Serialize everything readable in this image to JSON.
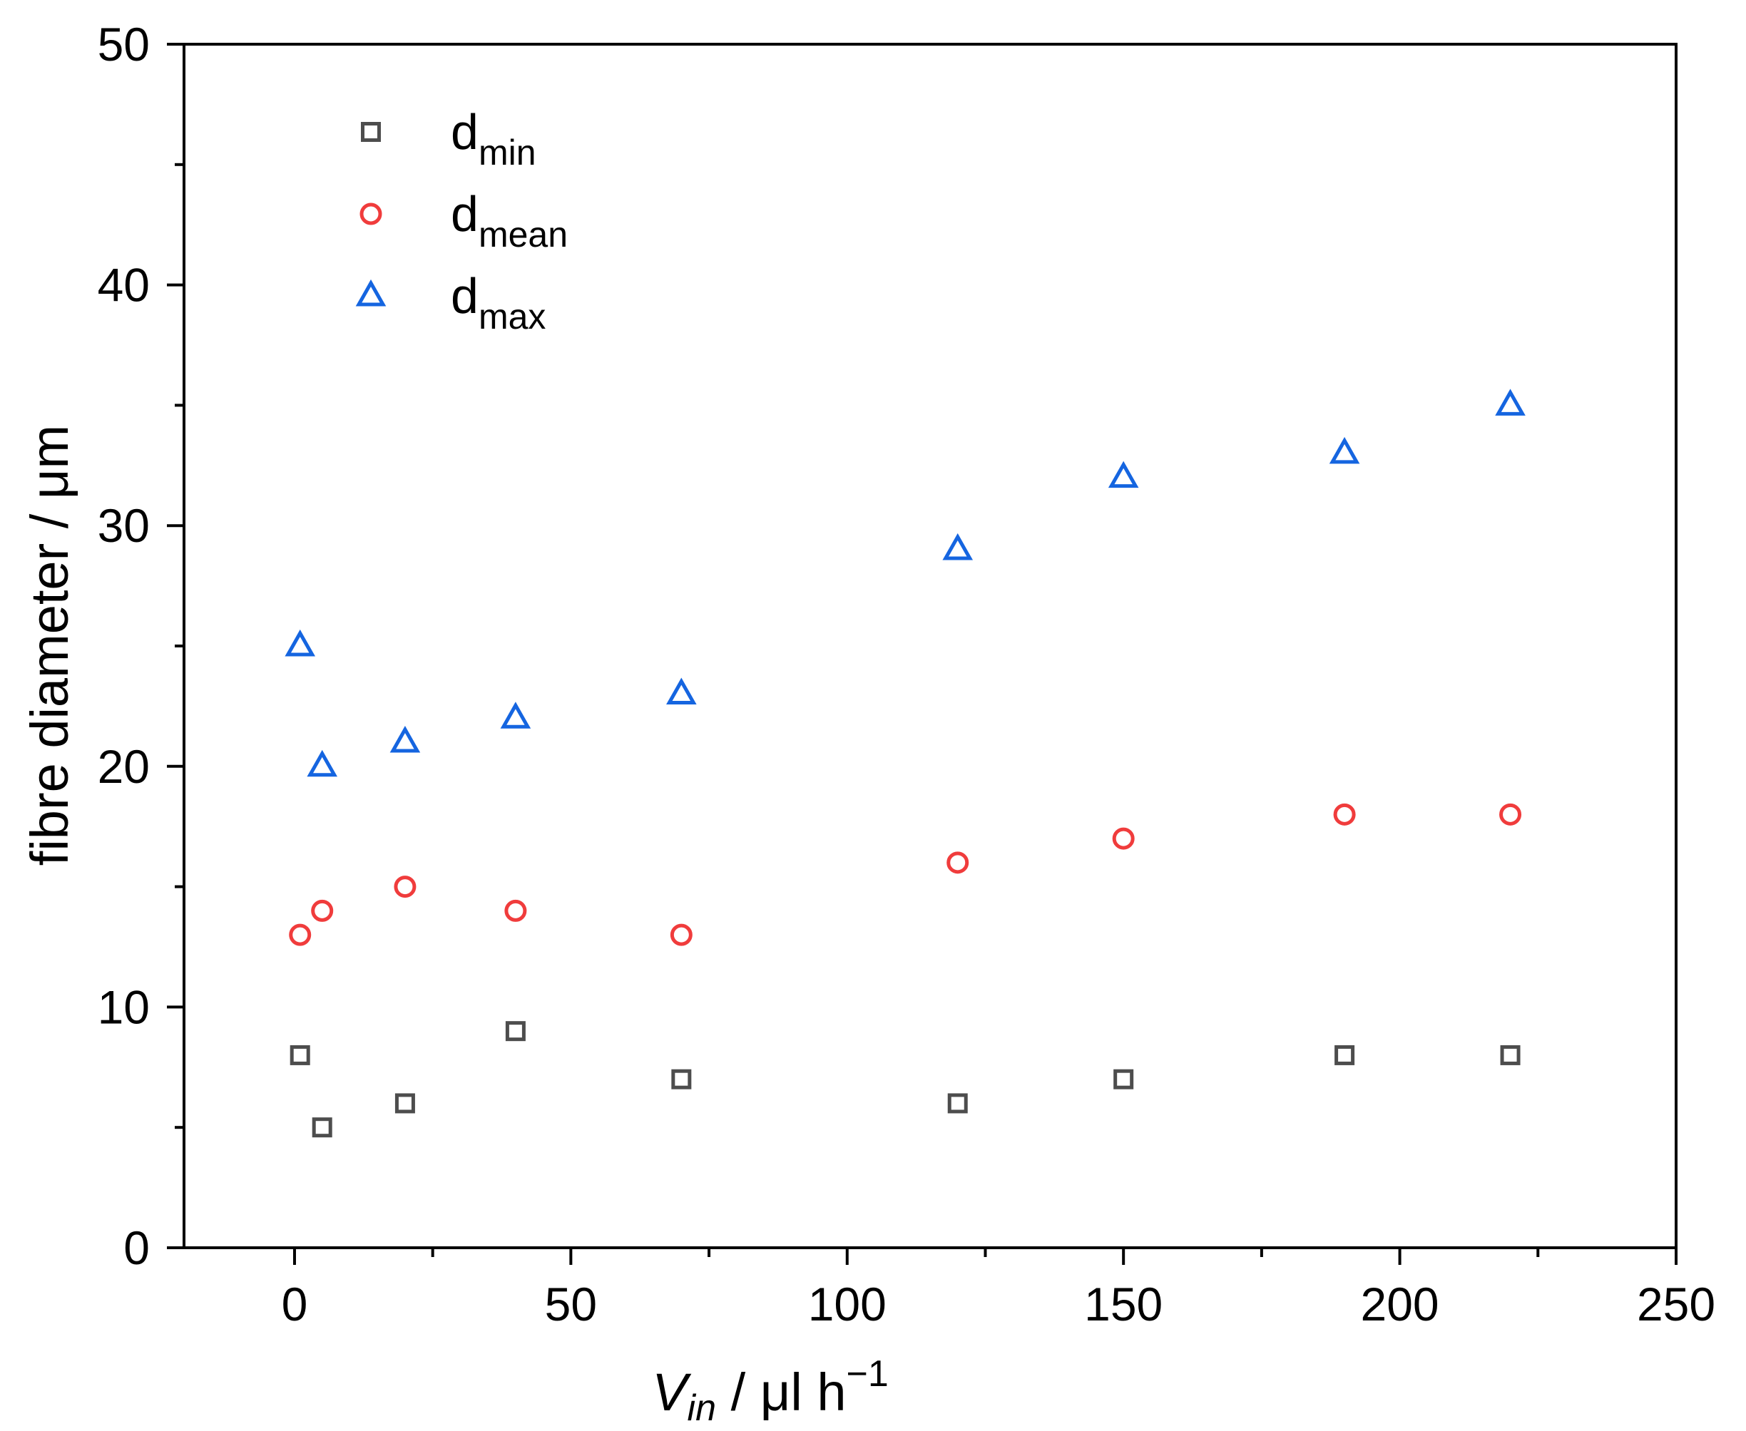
{
  "chart_data": {
    "type": "scatter",
    "title": "",
    "xlabel": {
      "main": "V",
      "sub": "in",
      "rest": " / μl h",
      "sup": "−1"
    },
    "ylabel": "fibre diameter / μm",
    "xlim": [
      -20,
      250
    ],
    "ylim": [
      0,
      50
    ],
    "xticks": [
      0,
      50,
      100,
      150,
      200,
      250
    ],
    "xtick_labels": [
      "0",
      "50",
      "100",
      "150",
      "200",
      "250"
    ],
    "yticks": [
      0,
      10,
      20,
      30,
      40,
      50
    ],
    "ytick_labels": [
      "0",
      "10",
      "20",
      "30",
      "40",
      "50"
    ],
    "legend_position": "top-left",
    "series": [
      {
        "name": "d_min",
        "label_main": "d",
        "label_sub": "min",
        "marker": "square",
        "color": "#4d4d4d",
        "x": [
          1,
          5,
          20,
          40,
          70,
          120,
          150,
          190,
          220
        ],
        "y": [
          8,
          5,
          6,
          9,
          7,
          6,
          7,
          8,
          8
        ]
      },
      {
        "name": "d_mean",
        "label_main": "d",
        "label_sub": "mean",
        "marker": "circle",
        "color": "#f03c3c",
        "x": [
          1,
          5,
          20,
          40,
          70,
          120,
          150,
          190,
          220
        ],
        "y": [
          13,
          14,
          15,
          14,
          13,
          16,
          17,
          18,
          18
        ]
      },
      {
        "name": "d_max",
        "label_main": "d",
        "label_sub": "max",
        "marker": "triangle",
        "color": "#1565e0",
        "x": [
          1,
          5,
          20,
          40,
          70,
          120,
          150,
          190,
          220
        ],
        "y": [
          25,
          20,
          21,
          22,
          23,
          29,
          32,
          33,
          35
        ]
      }
    ]
  }
}
